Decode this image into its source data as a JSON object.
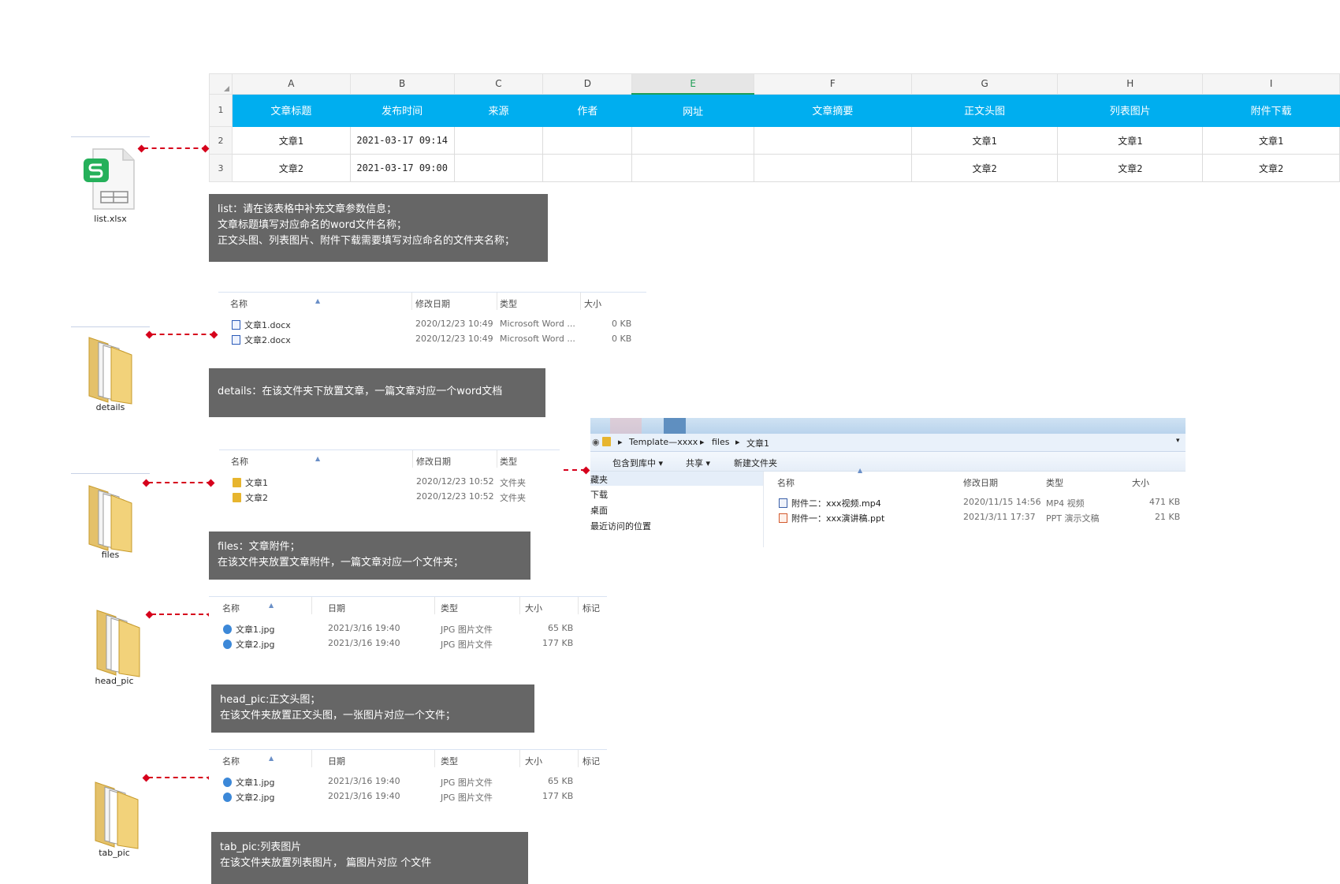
{
  "sheet": {
    "col_letters": [
      "A",
      "B",
      "C",
      "D",
      "E",
      "F",
      "G",
      "H",
      "I"
    ],
    "row_numbers": [
      "1",
      "2",
      "3"
    ],
    "headers": [
      "文章标题",
      "发布时间",
      "来源",
      "作者",
      "网址",
      "文章摘要",
      "正文头图",
      "列表图片",
      "附件下载"
    ],
    "rows": [
      [
        "文章1",
        "2021-03-17 09:14",
        "",
        "",
        "",
        "",
        "文章1",
        "文章1",
        "文章1"
      ],
      [
        "文章2",
        "2021-03-17 09:00",
        "",
        "",
        "",
        "",
        "文章2",
        "文章2",
        "文章2"
      ]
    ]
  },
  "icons": {
    "list": "list.xlsx",
    "details": "details",
    "files": "files",
    "head_pic": "head_pic",
    "tab_pic": "tab_pic"
  },
  "info": {
    "list": [
      "list：请在该表格中补充文章参数信息；",
      "文章标题填写对应命名的word文件名称；",
      "正文头图、列表图片、附件下载需要填写对应命名的文件夹名称；"
    ],
    "details": [
      "details：在该文件夹下放置文章，一篇文章对应一个word文档"
    ],
    "files": [
      "files：文章附件；",
      "在该文件夹放置文章附件，一篇文章对应一个文件夹；"
    ],
    "head_pic": [
      "head_pic:正文头图；",
      "在该文件夹放置正文头图，一张图片对应一个文件；"
    ],
    "tab_pic": [
      "tab_pic:列表图片",
      "在该文件夹放置列表图片，  篇图片对应  个文件"
    ]
  },
  "details_list": {
    "columns": [
      "名称",
      "修改日期",
      "类型",
      "大小"
    ],
    "rows": [
      {
        "name": "文章1.docx",
        "date": "2020/12/23 10:49",
        "type": "Microsoft Word ...",
        "size": "0 KB"
      },
      {
        "name": "文章2.docx",
        "date": "2020/12/23 10:49",
        "type": "Microsoft Word ...",
        "size": "0 KB"
      }
    ]
  },
  "files_list": {
    "columns": [
      "名称",
      "修改日期",
      "类型"
    ],
    "rows": [
      {
        "name": "文章1",
        "date": "2020/12/23 10:52",
        "type": "文件夹"
      },
      {
        "name": "文章2",
        "date": "2020/12/23 10:52",
        "type": "文件夹"
      }
    ]
  },
  "head_list": {
    "columns": [
      "名称",
      "日期",
      "类型",
      "大小",
      "标记"
    ],
    "rows": [
      {
        "name": "文章1.jpg",
        "date": "2021/3/16 19:40",
        "type": "JPG 图片文件",
        "size": "65 KB"
      },
      {
        "name": "文章2.jpg",
        "date": "2021/3/16 19:40",
        "type": "JPG 图片文件",
        "size": "177 KB"
      }
    ]
  },
  "tab_list": {
    "columns": [
      "名称",
      "日期",
      "类型",
      "大小",
      "标记"
    ],
    "rows": [
      {
        "name": "文章1.jpg",
        "date": "2021/3/16 19:40",
        "type": "JPG 图片文件",
        "size": "65 KB"
      },
      {
        "name": "文章2.jpg",
        "date": "2021/3/16 19:40",
        "type": "JPG 图片文件",
        "size": "177 KB"
      }
    ]
  },
  "window": {
    "breadcrumb": [
      "Template—xxxx",
      "files",
      "文章1"
    ],
    "toolbar": [
      "包含到库中 ▾",
      "共享 ▾",
      "新建文件夹"
    ],
    "nav": [
      "藏夹",
      "下载",
      "桌面",
      "最近访问的位置"
    ],
    "columns": [
      "名称",
      "修改日期",
      "类型",
      "大小"
    ],
    "rows": [
      {
        "name": "附件二：xxx视频.mp4",
        "date": "2020/11/15 14:56",
        "type": "MP4 视频",
        "size": "471 KB"
      },
      {
        "name": "附件一：xxx演讲稿.ppt",
        "date": "2021/3/11 17:37",
        "type": "PPT 演示文稿",
        "size": "21 KB"
      }
    ]
  },
  "colors": {
    "header_blue": "#00aeef",
    "connector_red": "#d6001c",
    "info_gray": "#666666",
    "folder_yellow": "#e7b52e",
    "wps_green": "#1f9e56"
  }
}
